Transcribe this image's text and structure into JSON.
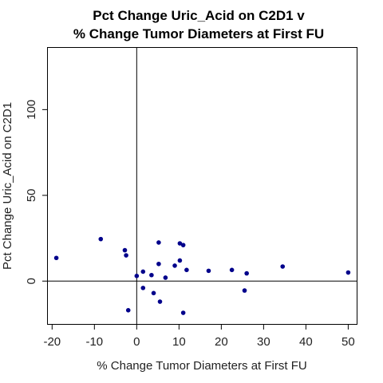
{
  "chart_data": {
    "type": "scatter",
    "title_line1": "Pct Change Uric_Acid on C2D1 v",
    "title_line2": "% Change Tumor Diameters at First FU",
    "xlabel": "% Change Tumor Diameters at First FU",
    "ylabel": "Pct Change Uric_Acid on C2D1",
    "xlim": [
      -21,
      52
    ],
    "ylim": [
      -25,
      136
    ],
    "x_ticks": [
      -20,
      -10,
      0,
      10,
      20,
      30,
      40,
      50
    ],
    "y_ticks": [
      0,
      50,
      100
    ],
    "reference_lines": {
      "x": 0,
      "y": 0
    },
    "point_color": "#00008b",
    "points": [
      {
        "x": -19,
        "y": 13.5
      },
      {
        "x": -8.5,
        "y": 24.5
      },
      {
        "x": -2.8,
        "y": 18
      },
      {
        "x": -2.5,
        "y": 15
      },
      {
        "x": -2,
        "y": -17
      },
      {
        "x": 0,
        "y": 3
      },
      {
        "x": 1.5,
        "y": 5.5
      },
      {
        "x": 1.5,
        "y": -4
      },
      {
        "x": 3.5,
        "y": 3.5
      },
      {
        "x": 4,
        "y": -7
      },
      {
        "x": 5.2,
        "y": 22.5
      },
      {
        "x": 5.2,
        "y": 10
      },
      {
        "x": 5.5,
        "y": -12
      },
      {
        "x": 6.8,
        "y": 2
      },
      {
        "x": 9,
        "y": 9
      },
      {
        "x": 10.2,
        "y": 22
      },
      {
        "x": 10.2,
        "y": 12
      },
      {
        "x": 11,
        "y": 21
      },
      {
        "x": 11,
        "y": -18.5
      },
      {
        "x": 11.8,
        "y": 6.5
      },
      {
        "x": 17,
        "y": 6
      },
      {
        "x": 22.5,
        "y": 6.5
      },
      {
        "x": 25.5,
        "y": -5.5
      },
      {
        "x": 26,
        "y": 4.5
      },
      {
        "x": 34.5,
        "y": 8.5
      },
      {
        "x": 50,
        "y": 5
      }
    ]
  }
}
